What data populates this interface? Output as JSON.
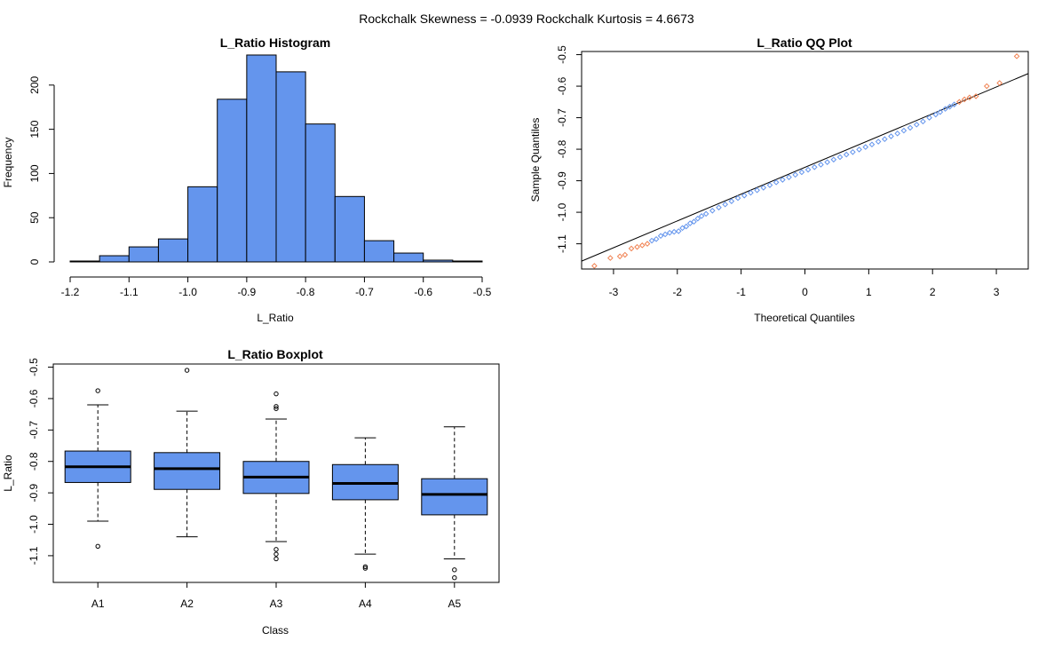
{
  "header": {
    "text": "Rockchalk Skewness =  -0.0939  Rockchalk Kurtosis =  4.6673"
  },
  "colors": {
    "fill": "#6495ED",
    "qq_outlier": "#F08050",
    "axis": "#000000",
    "background": "#FFFFFF"
  },
  "chart_data": [
    {
      "type": "bar",
      "subtype": "histogram",
      "title": "L_Ratio Histogram",
      "xlabel": "L_Ratio",
      "ylabel": "Frequency",
      "bin_edges": [
        -1.2,
        -1.15,
        -1.1,
        -1.05,
        -1.0,
        -0.95,
        -0.9,
        -0.85,
        -0.8,
        -0.75,
        -0.7,
        -0.65,
        -0.6,
        -0.55,
        -0.5
      ],
      "values": [
        1,
        7,
        17,
        26,
        85,
        184,
        234,
        215,
        156,
        74,
        24,
        10,
        2,
        1
      ],
      "xlim": [
        -1.2,
        -0.5
      ],
      "ylim": [
        0,
        240
      ],
      "x_ticks": [
        -1.2,
        -1.1,
        -1.0,
        -0.9,
        -0.8,
        -0.7,
        -0.6,
        -0.5
      ],
      "x_tick_labels": [
        "-1.2",
        "-1.1",
        "-1.0",
        "-0.9",
        "-0.8",
        "-0.7",
        "-0.6",
        "-0.5"
      ],
      "y_ticks": [
        0,
        50,
        100,
        150,
        200
      ],
      "y_tick_labels": [
        "0",
        "50",
        "100",
        "150",
        "200"
      ]
    },
    {
      "type": "scatter",
      "subtype": "qq",
      "title": "L_Ratio QQ Plot",
      "xlabel": "Theoretical Quantiles",
      "ylabel": "Sample Quantiles",
      "xlim": [
        -3.5,
        3.5
      ],
      "ylim": [
        -1.18,
        -0.49
      ],
      "x_ticks": [
        -3,
        -2,
        -1,
        0,
        1,
        2,
        3
      ],
      "x_tick_labels": [
        "-3",
        "-2",
        "-1",
        "0",
        "1",
        "2",
        "3"
      ],
      "y_ticks": [
        -1.1,
        -1.0,
        -0.9,
        -0.8,
        -0.7,
        -0.6,
        -0.5
      ],
      "y_tick_labels": [
        "-1.1",
        "-1.0",
        "-0.9",
        "-0.8",
        "-0.7",
        "-0.6",
        "-0.5"
      ],
      "reference_line": {
        "x": [
          -3.5,
          3.5
        ],
        "y": [
          -1.155,
          -0.56
        ]
      },
      "points": [
        {
          "x": -3.3,
          "y": -1.17
        },
        {
          "x": -3.05,
          "y": -1.145
        },
        {
          "x": -2.9,
          "y": -1.14
        },
        {
          "x": -2.82,
          "y": -1.135
        },
        {
          "x": -2.72,
          "y": -1.115
        },
        {
          "x": -2.63,
          "y": -1.11
        },
        {
          "x": -2.55,
          "y": -1.105
        },
        {
          "x": -2.47,
          "y": -1.1
        },
        {
          "x": -2.4,
          "y": -1.09
        },
        {
          "x": -2.33,
          "y": -1.085
        },
        {
          "x": -2.26,
          "y": -1.075
        },
        {
          "x": -2.19,
          "y": -1.07
        },
        {
          "x": -2.12,
          "y": -1.065
        },
        {
          "x": -2.05,
          "y": -1.062
        },
        {
          "x": -1.98,
          "y": -1.06
        },
        {
          "x": -1.92,
          "y": -1.05
        },
        {
          "x": -1.86,
          "y": -1.045
        },
        {
          "x": -1.8,
          "y": -1.035
        },
        {
          "x": -1.74,
          "y": -1.03
        },
        {
          "x": -1.68,
          "y": -1.02
        },
        {
          "x": -1.62,
          "y": -1.012
        },
        {
          "x": -1.55,
          "y": -1.005
        },
        {
          "x": -1.45,
          "y": -0.995
        },
        {
          "x": -1.35,
          "y": -0.985
        },
        {
          "x": -1.25,
          "y": -0.975
        },
        {
          "x": -1.15,
          "y": -0.965
        },
        {
          "x": -1.05,
          "y": -0.955
        },
        {
          "x": -0.95,
          "y": -0.947
        },
        {
          "x": -0.85,
          "y": -0.938
        },
        {
          "x": -0.75,
          "y": -0.93
        },
        {
          "x": -0.65,
          "y": -0.922
        },
        {
          "x": -0.55,
          "y": -0.914
        },
        {
          "x": -0.45,
          "y": -0.905
        },
        {
          "x": -0.35,
          "y": -0.897
        },
        {
          "x": -0.25,
          "y": -0.889
        },
        {
          "x": -0.15,
          "y": -0.881
        },
        {
          "x": -0.05,
          "y": -0.873
        },
        {
          "x": 0.05,
          "y": -0.865
        },
        {
          "x": 0.15,
          "y": -0.857
        },
        {
          "x": 0.25,
          "y": -0.849
        },
        {
          "x": 0.35,
          "y": -0.841
        },
        {
          "x": 0.45,
          "y": -0.833
        },
        {
          "x": 0.55,
          "y": -0.825
        },
        {
          "x": 0.65,
          "y": -0.817
        },
        {
          "x": 0.75,
          "y": -0.809
        },
        {
          "x": 0.85,
          "y": -0.801
        },
        {
          "x": 0.95,
          "y": -0.793
        },
        {
          "x": 1.05,
          "y": -0.785
        },
        {
          "x": 1.15,
          "y": -0.776
        },
        {
          "x": 1.25,
          "y": -0.768
        },
        {
          "x": 1.35,
          "y": -0.759
        },
        {
          "x": 1.45,
          "y": -0.75
        },
        {
          "x": 1.55,
          "y": -0.741
        },
        {
          "x": 1.65,
          "y": -0.732
        },
        {
          "x": 1.75,
          "y": -0.722
        },
        {
          "x": 1.85,
          "y": -0.712
        },
        {
          "x": 1.95,
          "y": -0.7
        },
        {
          "x": 2.05,
          "y": -0.69
        },
        {
          "x": 2.12,
          "y": -0.682
        },
        {
          "x": 2.2,
          "y": -0.672
        },
        {
          "x": 2.27,
          "y": -0.665
        },
        {
          "x": 2.34,
          "y": -0.658
        },
        {
          "x": 2.42,
          "y": -0.65
        },
        {
          "x": 2.5,
          "y": -0.642
        },
        {
          "x": 2.58,
          "y": -0.636
        },
        {
          "x": 2.68,
          "y": -0.632
        },
        {
          "x": 2.85,
          "y": -0.6
        },
        {
          "x": 3.05,
          "y": -0.59
        },
        {
          "x": 3.32,
          "y": -0.505
        }
      ]
    },
    {
      "type": "box",
      "title": "L_Ratio Boxplot",
      "xlabel": "Class",
      "ylabel": "L_Ratio",
      "ylim": [
        -1.185,
        -0.49
      ],
      "y_ticks": [
        -1.1,
        -1.0,
        -0.9,
        -0.8,
        -0.7,
        -0.6,
        -0.5
      ],
      "y_tick_labels": [
        "-1.1",
        "-1.0",
        "-0.9",
        "-0.8",
        "-0.7",
        "-0.6",
        "-0.5"
      ],
      "categories": [
        "A1",
        "A2",
        "A3",
        "A4",
        "A5"
      ],
      "boxes": [
        {
          "lower_whisker": -0.99,
          "q1": -0.867,
          "median": -0.817,
          "q3": -0.767,
          "upper_whisker": -0.62,
          "outliers": [
            -0.575,
            -1.07
          ]
        },
        {
          "lower_whisker": -1.04,
          "q1": -0.889,
          "median": -0.823,
          "q3": -0.772,
          "upper_whisker": -0.64,
          "outliers": [
            -0.51
          ]
        },
        {
          "lower_whisker": -1.055,
          "q1": -0.902,
          "median": -0.85,
          "q3": -0.8,
          "upper_whisker": -0.665,
          "outliers": [
            -0.585,
            -0.625,
            -0.632,
            -1.08,
            -1.095,
            -1.11
          ]
        },
        {
          "lower_whisker": -1.095,
          "q1": -0.922,
          "median": -0.87,
          "q3": -0.81,
          "upper_whisker": -0.725,
          "outliers": [
            -1.135,
            -1.14
          ]
        },
        {
          "lower_whisker": -1.11,
          "q1": -0.97,
          "median": -0.905,
          "q3": -0.855,
          "upper_whisker": -0.69,
          "outliers": [
            -1.145,
            -1.17
          ]
        }
      ]
    }
  ]
}
